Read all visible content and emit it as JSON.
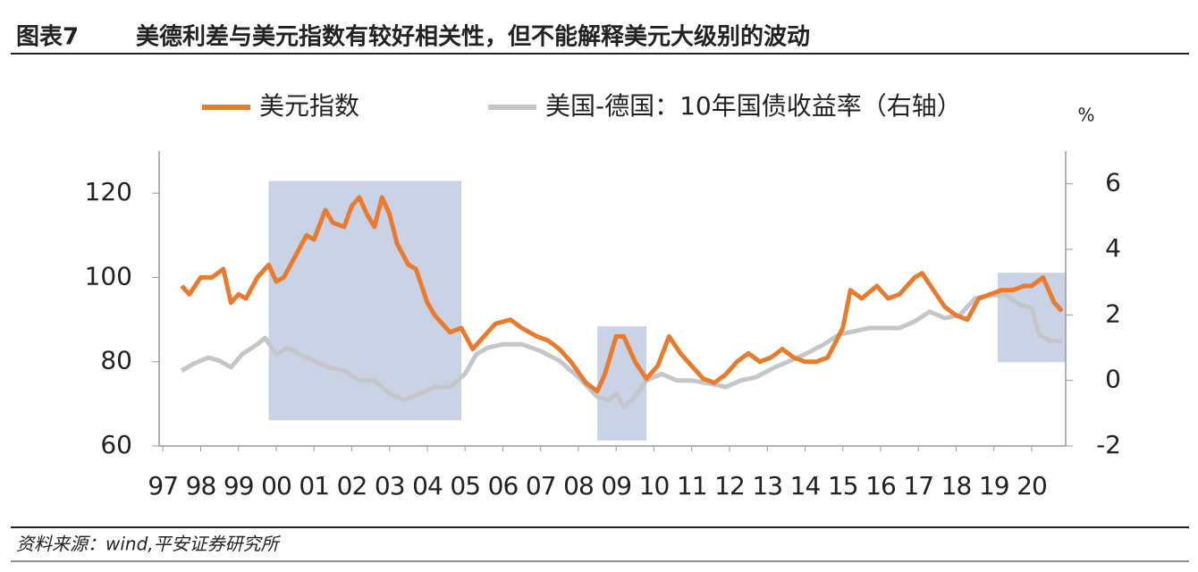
{
  "header": {
    "label": "图表7",
    "title": "美德利差与美元指数有较好相关性，但不能解释美元大级别的波动"
  },
  "footer": {
    "source": "资料来源：wind,平安证券研究所"
  },
  "chart_data": {
    "type": "line",
    "y2_label": "%",
    "xlim": [
      1996.9,
      2020.9
    ],
    "xticks": [
      {
        "value": 1997,
        "label": "97"
      },
      {
        "value": 1998,
        "label": "98"
      },
      {
        "value": 1999,
        "label": "99"
      },
      {
        "value": 2000,
        "label": "00"
      },
      {
        "value": 2001,
        "label": "01"
      },
      {
        "value": 2002,
        "label": "02"
      },
      {
        "value": 2003,
        "label": "03"
      },
      {
        "value": 2004,
        "label": "04"
      },
      {
        "value": 2005,
        "label": "05"
      },
      {
        "value": 2006,
        "label": "06"
      },
      {
        "value": 2007,
        "label": "07"
      },
      {
        "value": 2008,
        "label": "08"
      },
      {
        "value": 2009,
        "label": "09"
      },
      {
        "value": 2010,
        "label": "10"
      },
      {
        "value": 2011,
        "label": "11"
      },
      {
        "value": 2012,
        "label": "12"
      },
      {
        "value": 2013,
        "label": "13"
      },
      {
        "value": 2014,
        "label": "14"
      },
      {
        "value": 2015,
        "label": "15"
      },
      {
        "value": 2016,
        "label": "16"
      },
      {
        "value": 2017,
        "label": "17"
      },
      {
        "value": 2018,
        "label": "18"
      },
      {
        "value": 2019,
        "label": "19"
      },
      {
        "value": 2020,
        "label": "20"
      }
    ],
    "ylim": [
      60,
      130
    ],
    "yticks": [
      60,
      80,
      100,
      120
    ],
    "y2lim": [
      -2,
      7
    ],
    "y2ticks": [
      -2,
      0,
      2,
      4,
      6
    ],
    "highlights": [
      {
        "x": [
          1999.8,
          2004.9
        ],
        "y": [
          66.1,
          122.9
        ],
        "color": "#b8c4dc"
      },
      {
        "x": [
          2008.5,
          2009.8
        ],
        "y": [
          61.3,
          88.4
        ],
        "color": "#b8c4dc"
      },
      {
        "x": [
          2019.1,
          2020.9
        ],
        "y": [
          79.9,
          101.1
        ],
        "color": "#b8c4dc"
      }
    ],
    "series": [
      {
        "name": "美元指数",
        "color": "#e87b2e",
        "x": [
          1997.5,
          1997.7,
          1998.0,
          1998.3,
          1998.6,
          1998.8,
          1999.0,
          1999.2,
          1999.5,
          1999.8,
          2000.0,
          2000.2,
          2000.5,
          2000.8,
          2001.0,
          2001.3,
          2001.5,
          2001.8,
          2002.0,
          2002.2,
          2002.4,
          2002.6,
          2002.8,
          2003.0,
          2003.2,
          2003.5,
          2003.7,
          2004.0,
          2004.2,
          2004.4,
          2004.6,
          2004.9,
          2005.2,
          2005.5,
          2005.8,
          2006.2,
          2006.5,
          2006.9,
          2007.2,
          2007.5,
          2007.8,
          2008.2,
          2008.5,
          2008.7,
          2009.0,
          2009.2,
          2009.5,
          2009.8,
          2010.1,
          2010.4,
          2010.7,
          2011.0,
          2011.3,
          2011.6,
          2011.9,
          2012.2,
          2012.5,
          2012.8,
          2013.1,
          2013.4,
          2013.7,
          2014.0,
          2014.3,
          2014.6,
          2015.0,
          2015.2,
          2015.5,
          2015.9,
          2016.2,
          2016.5,
          2016.9,
          2017.1,
          2017.4,
          2017.7,
          2018.0,
          2018.3,
          2018.6,
          2018.9,
          2019.2,
          2019.5,
          2019.8,
          2020.0,
          2020.3,
          2020.6,
          2020.8
        ],
        "values": [
          98,
          96,
          100,
          100,
          102,
          94,
          96,
          95,
          100,
          103,
          99,
          100,
          105,
          110,
          109,
          116,
          113,
          112,
          117,
          119,
          115,
          112,
          119,
          115,
          108,
          103,
          102,
          94,
          91,
          89,
          87,
          88,
          83,
          86,
          89,
          90,
          88,
          86,
          85,
          83,
          80,
          75,
          73,
          77,
          86,
          86,
          80,
          76,
          79,
          86,
          82,
          79,
          76,
          75,
          77,
          80,
          82,
          80,
          81,
          83,
          81,
          80,
          80,
          81,
          88,
          97,
          95,
          98,
          95,
          96,
          100,
          101,
          97,
          93,
          91,
          90,
          95,
          96,
          97,
          97,
          98,
          98,
          100,
          94,
          92
        ]
      },
      {
        "name": "美国-德国：10年国债收益率（右轴）",
        "color": "#c4c6c9",
        "axis": "y2",
        "x": [
          1997.5,
          1997.8,
          1998.2,
          1998.5,
          1998.8,
          1999.1,
          1999.5,
          1999.7,
          2000.0,
          2000.3,
          2000.6,
          2001.0,
          2001.4,
          2001.8,
          2002.2,
          2002.6,
          2003.0,
          2003.4,
          2003.8,
          2004.2,
          2004.6,
          2005.0,
          2005.3,
          2005.6,
          2006.0,
          2006.5,
          2007.0,
          2007.5,
          2008.0,
          2008.5,
          2008.8,
          2009.0,
          2009.2,
          2009.5,
          2009.8,
          2010.2,
          2010.6,
          2011.0,
          2011.5,
          2011.9,
          2012.3,
          2012.7,
          2013.2,
          2013.6,
          2014.0,
          2014.5,
          2014.9,
          2015.3,
          2015.7,
          2016.1,
          2016.5,
          2016.9,
          2017.3,
          2017.7,
          2018.1,
          2018.5,
          2018.9,
          2019.3,
          2019.7,
          2020.0,
          2020.2,
          2020.5,
          2020.8
        ],
        "values": [
          0.3,
          0.5,
          0.7,
          0.6,
          0.4,
          0.8,
          1.1,
          1.3,
          0.8,
          1.0,
          0.8,
          0.6,
          0.4,
          0.3,
          0.0,
          0.0,
          -0.4,
          -0.6,
          -0.4,
          -0.2,
          -0.2,
          0.2,
          0.8,
          1.0,
          1.1,
          1.1,
          0.9,
          0.6,
          0.1,
          -0.5,
          -0.6,
          -0.4,
          -0.8,
          -0.5,
          0.0,
          0.2,
          0.0,
          0.0,
          -0.1,
          -0.2,
          0.0,
          0.1,
          0.4,
          0.6,
          0.8,
          1.1,
          1.4,
          1.5,
          1.6,
          1.6,
          1.6,
          1.8,
          2.1,
          1.9,
          2.0,
          2.5,
          2.6,
          2.6,
          2.3,
          2.2,
          1.4,
          1.2,
          1.2
        ]
      }
    ]
  }
}
